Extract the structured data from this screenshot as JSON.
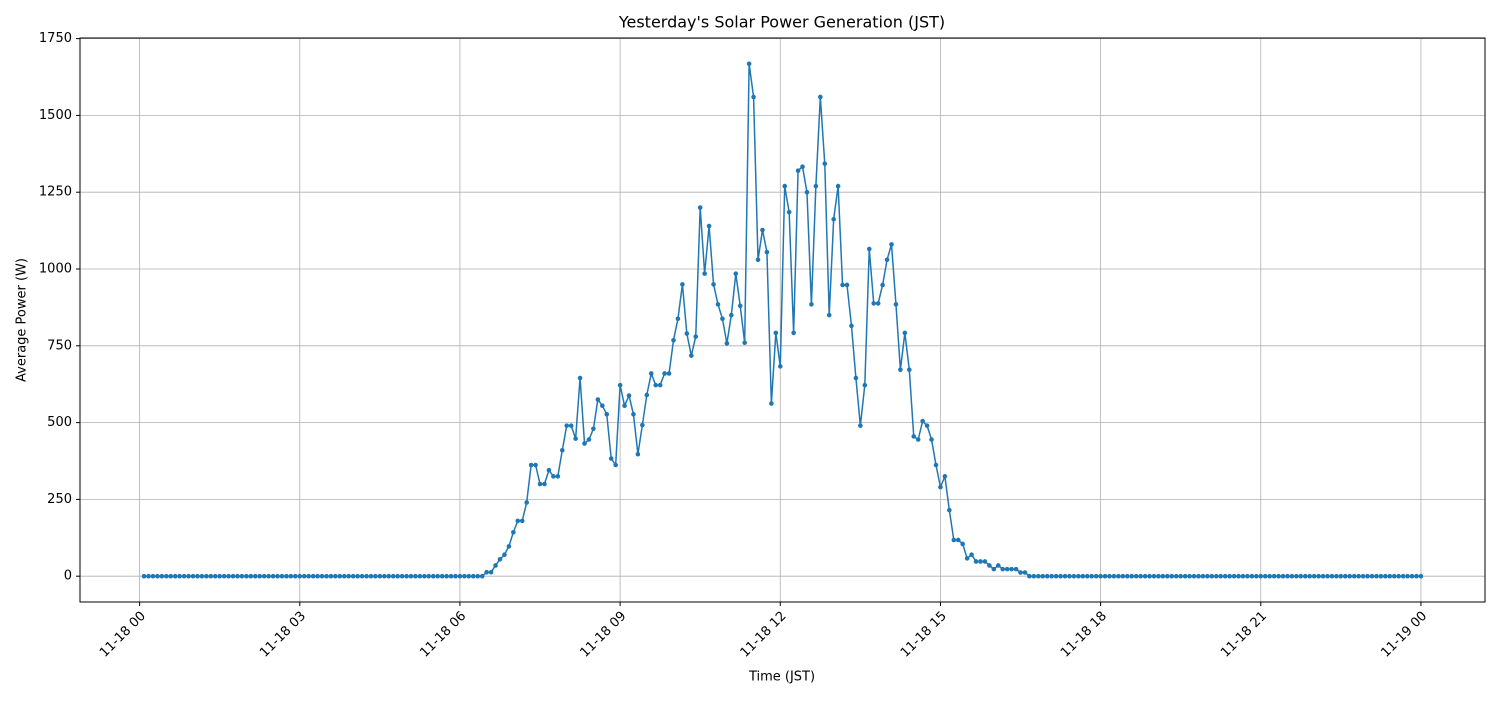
{
  "chart_data": {
    "type": "line",
    "title": "Yesterday's Solar Power Generation (JST)",
    "x_label": "Time (JST)",
    "y_label": "Average Power (W)",
    "color": "#1f77b4",
    "grid": true,
    "x": [
      "11-18 00:05",
      "11-18 00:10",
      "11-18 00:15",
      "11-18 00:20",
      "11-18 00:25",
      "11-18 00:30",
      "11-18 00:35",
      "11-18 00:40",
      "11-18 00:45",
      "11-18 00:50",
      "11-18 00:55",
      "11-18 01:00",
      "11-18 01:05",
      "11-18 01:10",
      "11-18 01:15",
      "11-18 01:20",
      "11-18 01:25",
      "11-18 01:30",
      "11-18 01:35",
      "11-18 01:40",
      "11-18 01:45",
      "11-18 01:50",
      "11-18 01:55",
      "11-18 02:00",
      "11-18 02:05",
      "11-18 02:10",
      "11-18 02:15",
      "11-18 02:20",
      "11-18 02:25",
      "11-18 02:30",
      "11-18 02:35",
      "11-18 02:40",
      "11-18 02:45",
      "11-18 02:50",
      "11-18 02:55",
      "11-18 03:00",
      "11-18 03:05",
      "11-18 03:10",
      "11-18 03:15",
      "11-18 03:20",
      "11-18 03:25",
      "11-18 03:30",
      "11-18 03:35",
      "11-18 03:40",
      "11-18 03:45",
      "11-18 03:50",
      "11-18 03:55",
      "11-18 04:00",
      "11-18 04:05",
      "11-18 04:10",
      "11-18 04:15",
      "11-18 04:20",
      "11-18 04:25",
      "11-18 04:30",
      "11-18 04:35",
      "11-18 04:40",
      "11-18 04:45",
      "11-18 04:50",
      "11-18 04:55",
      "11-18 05:00",
      "11-18 05:05",
      "11-18 05:10",
      "11-18 05:15",
      "11-18 05:20",
      "11-18 05:25",
      "11-18 05:30",
      "11-18 05:35",
      "11-18 05:40",
      "11-18 05:45",
      "11-18 05:50",
      "11-18 05:55",
      "11-18 06:00",
      "11-18 06:05",
      "11-18 06:10",
      "11-18 06:15",
      "11-18 06:20",
      "11-18 06:25",
      "11-18 06:30",
      "11-18 06:35",
      "11-18 06:40",
      "11-18 06:45",
      "11-18 06:50",
      "11-18 06:55",
      "11-18 07:00",
      "11-18 07:05",
      "11-18 07:10",
      "11-18 07:15",
      "11-18 07:20",
      "11-18 07:25",
      "11-18 07:30",
      "11-18 07:35",
      "11-18 07:40",
      "11-18 07:45",
      "11-18 07:50",
      "11-18 07:55",
      "11-18 08:00",
      "11-18 08:05",
      "11-18 08:10",
      "11-18 08:15",
      "11-18 08:20",
      "11-18 08:25",
      "11-18 08:30",
      "11-18 08:35",
      "11-18 08:40",
      "11-18 08:45",
      "11-18 08:50",
      "11-18 08:55",
      "11-18 09:00",
      "11-18 09:05",
      "11-18 09:10",
      "11-18 09:15",
      "11-18 09:20",
      "11-18 09:25",
      "11-18 09:30",
      "11-18 09:35",
      "11-18 09:40",
      "11-18 09:45",
      "11-18 09:50",
      "11-18 09:55",
      "11-18 10:00",
      "11-18 10:05",
      "11-18 10:10",
      "11-18 10:15",
      "11-18 10:20",
      "11-18 10:25",
      "11-18 10:30",
      "11-18 10:35",
      "11-18 10:40",
      "11-18 10:45",
      "11-18 10:50",
      "11-18 10:55",
      "11-18 11:00",
      "11-18 11:05",
      "11-18 11:10",
      "11-18 11:15",
      "11-18 11:20",
      "11-18 11:25",
      "11-18 11:30",
      "11-18 11:35",
      "11-18 11:40",
      "11-18 11:45",
      "11-18 11:50",
      "11-18 11:55",
      "11-18 12:00",
      "11-18 12:05",
      "11-18 12:10",
      "11-18 12:15",
      "11-18 12:20",
      "11-18 12:25",
      "11-18 12:30",
      "11-18 12:35",
      "11-18 12:40",
      "11-18 12:45",
      "11-18 12:50",
      "11-18 12:55",
      "11-18 13:00",
      "11-18 13:05",
      "11-18 13:10",
      "11-18 13:15",
      "11-18 13:20",
      "11-18 13:25",
      "11-18 13:30",
      "11-18 13:35",
      "11-18 13:40",
      "11-18 13:45",
      "11-18 13:50",
      "11-18 13:55",
      "11-18 14:00",
      "11-18 14:05",
      "11-18 14:10",
      "11-18 14:15",
      "11-18 14:20",
      "11-18 14:25",
      "11-18 14:30",
      "11-18 14:35",
      "11-18 14:40",
      "11-18 14:45",
      "11-18 14:50",
      "11-18 14:55",
      "11-18 15:00",
      "11-18 15:05",
      "11-18 15:10",
      "11-18 15:15",
      "11-18 15:20",
      "11-18 15:25",
      "11-18 15:30",
      "11-18 15:35",
      "11-18 15:40",
      "11-18 15:45",
      "11-18 15:50",
      "11-18 15:55",
      "11-18 16:00",
      "11-18 16:05",
      "11-18 16:10",
      "11-18 16:15",
      "11-18 16:20",
      "11-18 16:25",
      "11-18 16:30",
      "11-18 16:35",
      "11-18 16:40",
      "11-18 16:45",
      "11-18 16:50",
      "11-18 16:55",
      "11-18 17:00",
      "11-18 17:05",
      "11-18 17:10",
      "11-18 17:15",
      "11-18 17:20",
      "11-18 17:25",
      "11-18 17:30",
      "11-18 17:35",
      "11-18 17:40",
      "11-18 17:45",
      "11-18 17:50",
      "11-18 17:55",
      "11-18 18:00",
      "11-18 18:05",
      "11-18 18:10",
      "11-18 18:15",
      "11-18 18:20",
      "11-18 18:25",
      "11-18 18:30",
      "11-18 18:35",
      "11-18 18:40",
      "11-18 18:45",
      "11-18 18:50",
      "11-18 18:55",
      "11-18 19:00",
      "11-18 19:05",
      "11-18 19:10",
      "11-18 19:15",
      "11-18 19:20",
      "11-18 19:25",
      "11-18 19:30",
      "11-18 19:35",
      "11-18 19:40",
      "11-18 19:45",
      "11-18 19:50",
      "11-18 19:55",
      "11-18 20:00",
      "11-18 20:05",
      "11-18 20:10",
      "11-18 20:15",
      "11-18 20:20",
      "11-18 20:25",
      "11-18 20:30",
      "11-18 20:35",
      "11-18 20:40",
      "11-18 20:45",
      "11-18 20:50",
      "11-18 20:55",
      "11-18 21:00",
      "11-18 21:05",
      "11-18 21:10",
      "11-18 21:15",
      "11-18 21:20",
      "11-18 21:25",
      "11-18 21:30",
      "11-18 21:35",
      "11-18 21:40",
      "11-18 21:45",
      "11-18 21:50",
      "11-18 21:55",
      "11-18 22:00",
      "11-18 22:05",
      "11-18 22:10",
      "11-18 22:15",
      "11-18 22:20",
      "11-18 22:25",
      "11-18 22:30",
      "11-18 22:35",
      "11-18 22:40",
      "11-18 22:45",
      "11-18 22:50",
      "11-18 22:55",
      "11-18 23:00",
      "11-18 23:05",
      "11-18 23:10",
      "11-18 23:15",
      "11-18 23:20",
      "11-18 23:25",
      "11-18 23:30",
      "11-18 23:35",
      "11-18 23:40",
      "11-18 23:45",
      "11-18 23:50",
      "11-18 23:55",
      "11-19 00:00"
    ],
    "values": [
      0,
      0,
      0,
      0,
      0,
      0,
      0,
      0,
      0,
      0,
      0,
      0,
      0,
      0,
      0,
      0,
      0,
      0,
      0,
      0,
      0,
      0,
      0,
      0,
      0,
      0,
      0,
      0,
      0,
      0,
      0,
      0,
      0,
      0,
      0,
      0,
      0,
      0,
      0,
      0,
      0,
      0,
      0,
      0,
      0,
      0,
      0,
      0,
      0,
      0,
      0,
      0,
      0,
      0,
      0,
      0,
      0,
      0,
      0,
      0,
      0,
      0,
      0,
      0,
      0,
      0,
      0,
      0,
      0,
      0,
      0,
      0,
      0,
      0,
      0,
      0,
      0,
      13,
      13,
      35,
      55,
      70,
      97,
      143,
      180,
      180,
      240,
      362,
      362,
      300,
      300,
      345,
      325,
      325,
      410,
      490,
      490,
      448,
      645,
      432,
      445,
      480,
      575,
      555,
      527,
      383,
      362,
      622,
      555,
      588,
      527,
      397,
      492,
      590,
      660,
      622,
      622,
      660,
      660,
      768,
      838,
      950,
      790,
      718,
      780,
      1200,
      985,
      1140,
      950,
      885,
      838,
      758,
      850,
      985,
      880,
      760,
      1668,
      1560,
      1030,
      1127,
      1055,
      562,
      792,
      683,
      1270,
      1185,
      792,
      1320,
      1333,
      1250,
      885,
      1270,
      1560,
      1343,
      850,
      1162,
      1270,
      948,
      948,
      815,
      645,
      490,
      622,
      1065,
      888,
      888,
      948,
      1030,
      1080,
      885,
      672,
      792,
      672,
      455,
      445,
      505,
      490,
      445,
      362,
      290,
      325,
      215,
      118,
      118,
      105,
      58,
      70,
      48,
      48,
      48,
      35,
      23,
      35,
      23,
      23,
      23,
      23,
      12,
      12,
      0,
      0,
      0,
      0,
      0,
      0,
      0,
      0,
      0,
      0,
      0,
      0,
      0,
      0,
      0,
      0,
      0,
      0,
      0,
      0,
      0,
      0,
      0,
      0,
      0,
      0,
      0,
      0,
      0,
      0,
      0,
      0,
      0,
      0,
      0,
      0,
      0,
      0,
      0,
      0,
      0,
      0,
      0,
      0,
      0,
      0,
      0,
      0,
      0,
      0,
      0,
      0,
      0,
      0,
      0,
      0,
      0,
      0,
      0,
      0,
      0,
      0,
      0,
      0,
      0,
      0,
      0,
      0,
      0,
      0,
      0,
      0,
      0,
      0,
      0,
      0,
      0,
      0,
      0,
      0,
      0,
      0,
      0,
      0,
      0,
      0,
      0,
      0,
      0
    ],
    "xlim": [
      "11-17 22:53",
      "11-19 01:12"
    ],
    "xticks": [
      "11-18 00",
      "11-18 03",
      "11-18 06",
      "11-18 09",
      "11-18 12",
      "11-18 15",
      "11-18 18",
      "11-18 21",
      "11-19 00"
    ],
    "ylim": [
      -84,
      1752
    ],
    "yticks": [
      0,
      250,
      500,
      750,
      1000,
      1250,
      1500,
      1750
    ]
  }
}
